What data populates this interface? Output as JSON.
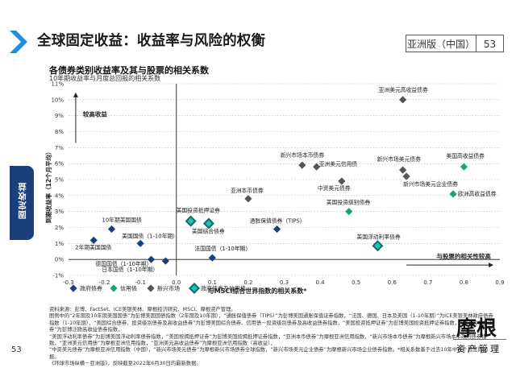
{
  "header": {
    "title": "全球固定收益：收益率与风险的权衡",
    "edition": "亚洲版（中国）",
    "page_number": "53",
    "side_tab": "固定收益"
  },
  "chart_title": "各债券类别收益率及其与股票的相关系数",
  "chart_subtitle": "10年期收益率与月度总回报的相关系数",
  "colors": {
    "政府债券": "#1b3f7a",
    "信用债": "#16a37f",
    "新兴市场": "#555555",
    "政府债券及信用债": "#0f6b63"
  },
  "chart_data": {
    "type": "scatter",
    "title": "各债券类别收益率及其与股票的相关系数",
    "subtitle": "10年期收益率与月度总回报的相关系数",
    "xlabel": "与MSCI综合世界指数的相关系数*",
    "ylabel": "到期收益率（12个月平均）",
    "xlim": [
      -0.3,
      0.9
    ],
    "ylim": [
      -1,
      11
    ],
    "x_ticks": [
      "-0.3",
      "-0.2",
      "-0.1",
      "0.0",
      "0.1",
      "0.2",
      "0.3",
      "0.4",
      "0.5",
      "0.6",
      "0.7",
      "0.8",
      "0.9"
    ],
    "y_ticks": [
      "-1%",
      "0%",
      "1%",
      "2%",
      "3%",
      "4%",
      "5%",
      "6%",
      "7%",
      "8%",
      "9%",
      "10%",
      "11%"
    ],
    "annotations": {
      "y_arrow": "较高收益",
      "x_arrow": "与股票的相关性较高"
    },
    "legend": [
      "政府债券",
      "信用债",
      "新兴市场",
      "政府债券及信用债"
    ],
    "points": [
      {
        "label": "10年期美国国债",
        "x": -0.18,
        "y": 1.9,
        "cat": "政府债券"
      },
      {
        "label": "2年期美国国债",
        "x": -0.23,
        "y": 1.2,
        "cat": "政府债券"
      },
      {
        "label": "美国国债（1-10年期）",
        "x": -0.1,
        "y": 1.0,
        "cat": "政府债券"
      },
      {
        "label": "德国国债（1-10年期）",
        "x": -0.07,
        "y": 0.0,
        "cat": "政府债券"
      },
      {
        "label": "日本国债（1-10年期）",
        "x": -0.03,
        "y": -0.1,
        "cat": "政府债券"
      },
      {
        "label": "法国国债（1-10年期）",
        "x": 0.1,
        "y": 0.1,
        "cat": "政府债券"
      },
      {
        "label": "通胀保值债券（TIPS）",
        "x": 0.28,
        "y": 1.9,
        "cat": "政府债券"
      },
      {
        "label": "美国投资抵押证券",
        "x": 0.04,
        "y": 2.4,
        "cat": "政府债券及信用债"
      },
      {
        "label": "美国综合债券",
        "x": 0.09,
        "y": 2.25,
        "cat": "政府债券及信用债"
      },
      {
        "label": "美国浮动利率债券",
        "x": 0.56,
        "y": 0.85,
        "cat": "政府债券及信用债"
      },
      {
        "label": "美国投资级别债券",
        "x": 0.48,
        "y": 3.0,
        "cat": "信用债"
      },
      {
        "label": "美国高收益债券",
        "x": 0.8,
        "y": 5.8,
        "cat": "信用债"
      },
      {
        "label": "欧洲高收益债券",
        "x": 0.77,
        "y": 4.1,
        "cat": "信用债"
      },
      {
        "label": "亚洲美元高收益债券",
        "x": 0.63,
        "y": 10.0,
        "cat": "新兴市场"
      },
      {
        "label": "新兴市场本币债券",
        "x": 0.35,
        "y": 5.9,
        "cat": "新兴市场"
      },
      {
        "label": "亚洲美元信用债",
        "x": 0.39,
        "y": 5.8,
        "cat": "新兴市场"
      },
      {
        "label": "中资美元债券",
        "x": 0.46,
        "y": 4.9,
        "cat": "新兴市场"
      },
      {
        "label": "亚洲本币债券",
        "x": 0.2,
        "y": 3.8,
        "cat": "新兴市场"
      },
      {
        "label": "新兴市场美元债券",
        "x": 0.63,
        "y": 5.6,
        "cat": "新兴市场"
      },
      {
        "label": "新兴市场美元企业债券",
        "x": 0.64,
        "y": 5.2,
        "cat": "新兴市场"
      }
    ]
  },
  "notes": {
    "line1": "资料来源：彭博、FactSet、ICE美银美林、摩根经济研究、MSCI、摩根资产管理。",
    "line2": "图例中的“2年期及10年期美国国债”为彭博美国国债指数（2年期及10年期），“通胀保值债券（TIPS）”为彭博美国通胀保值证券指数，“法国、德国、日本及美国（1-10年期）”为ICE美银美林政府债券指数（1-10年期），“美国综合债券、投资级别债券及高收益债券”为彭博美国综合债券、信用债－投资级别债券及高收益债券指数，“美国投资抵押证券”为彭博美国投资抵押证券指数，“欧洲高收益债券”为彭博泛欧高收益债券指数，",
    "line3": "“美国浮动利率债券”为彭博美国浮动利率债券指数，“美国按揭抵押证券”为彭博美国按揭抵押证券指数，“亚洲本币债券”为摩根亚洲信用指数，“新兴市场本币债券”为摩根新兴市场本币政府债券指数，“亚洲美元信用债”为摩根亚洲信用指数，“亚洲美元高收益债券”为摩根亚洲信用指数（高收益），",
    "line4": "“中资美元债券”为摩根亚洲信用指数（中国），“新兴市场美元债券”为摩根新兴市场债券全球指数，“新兴市场美元企业债券”为摩根新兴市场企业债券指数。*相关系数基于过去10年中各个月度的回报。",
    "line5": "《环球市场纵横－亚洲版》，反映截至2022年6月30日的最新数据。"
  },
  "footer": {
    "page_number": "53",
    "logo_text": "摩根",
    "logo_sub": "资产管理"
  }
}
